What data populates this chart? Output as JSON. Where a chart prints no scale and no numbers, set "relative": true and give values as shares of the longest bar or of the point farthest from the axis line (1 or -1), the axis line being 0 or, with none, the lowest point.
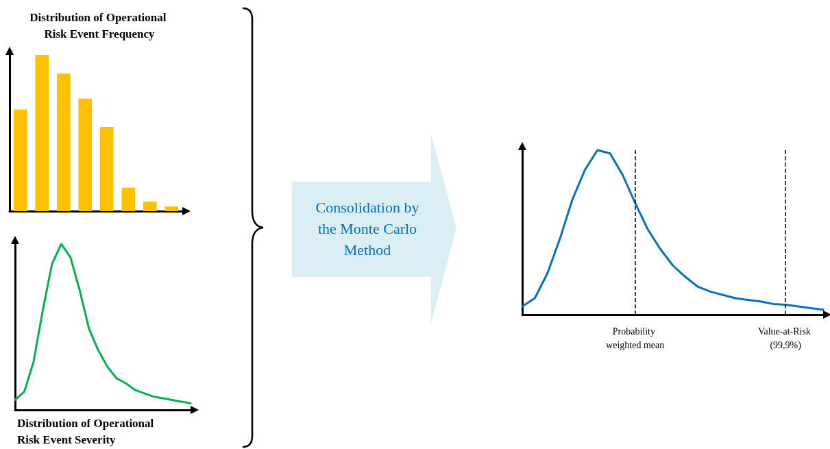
{
  "chart_data": [
    {
      "type": "bar",
      "title": "Distribution of Operational Risk Event Frequency",
      "relative": true,
      "categories": [
        null,
        null,
        null,
        null,
        null,
        null,
        null,
        null
      ],
      "values": [
        0.65,
        1,
        0.88,
        0.72,
        0.54,
        0.15,
        0.06,
        0.03
      ],
      "color": "#ffc000",
      "grid": false
    },
    {
      "type": "line",
      "xlabel": "Distribution of Operational Risk Event Severity",
      "relative": true,
      "categories": [
        null,
        null,
        null,
        null,
        null,
        null,
        null,
        null,
        null,
        null,
        null,
        null,
        null,
        null,
        null,
        null,
        null,
        null,
        null,
        null
      ],
      "series": [
        {
          "color": "#00b050",
          "values": [
            0.06,
            0.11,
            0.29,
            0.6,
            0.88,
            1,
            0.92,
            0.72,
            0.49,
            0.36,
            0.26,
            0.19,
            0.16,
            0.12,
            0.1,
            0.08,
            0.07,
            0.06,
            0.05,
            0.04
          ]
        }
      ],
      "marker": "none",
      "line_style": "solid",
      "grid": false
    },
    {
      "type": "line",
      "relative": true,
      "annotations": [
        "Consolidation by the Monte Carlo Method",
        "Probability weighted mean",
        "Value-at-Risk (99,9%)"
      ],
      "categories": [
        null,
        null,
        null,
        null,
        null,
        null,
        null,
        null,
        null,
        null,
        null,
        null,
        null,
        null,
        null,
        null,
        null,
        null,
        null,
        null,
        null,
        null,
        null,
        null,
        null
      ],
      "series": [
        {
          "color": "#0070c0",
          "values": [
            0.05,
            0.1,
            0.25,
            0.46,
            0.7,
            0.88,
            1,
            0.98,
            0.85,
            0.68,
            0.52,
            0.4,
            0.3,
            0.23,
            0.17,
            0.14,
            0.12,
            0.1,
            0.09,
            0.08,
            0.065,
            0.06,
            0.05,
            0.04,
            0.03
          ]
        }
      ],
      "marker": "none",
      "line_style": "solid",
      "grid": false
    }
  ]
}
